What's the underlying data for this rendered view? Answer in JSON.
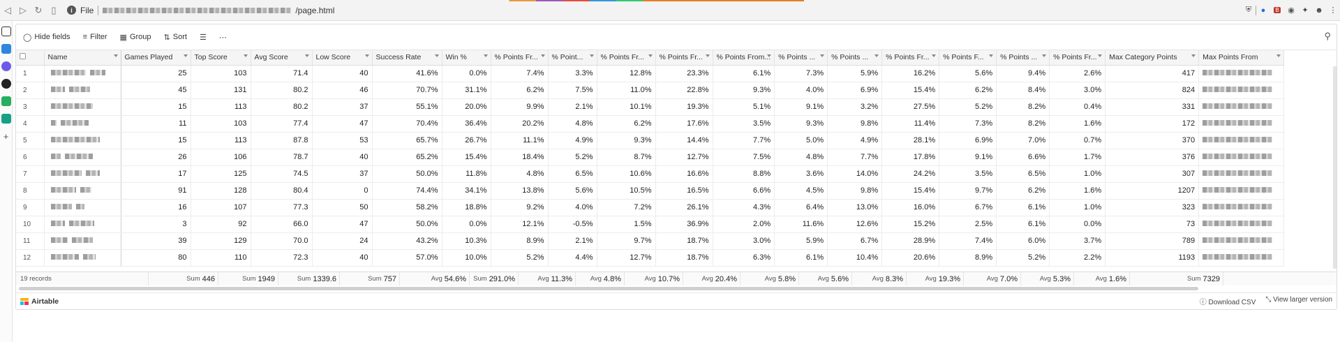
{
  "browser": {
    "address_prefix": "File",
    "address_path": "/page.html"
  },
  "toolbar": {
    "hide_fields": "Hide fields",
    "filter": "Filter",
    "group": "Group",
    "sort": "Sort"
  },
  "table": {
    "columns": [
      "Name",
      "Games Played",
      "Top Score",
      "Avg Score",
      "Low Score",
      "Success Rate",
      "Win %",
      "% Points Fr...",
      "% Point...",
      "% Points Fr...",
      "% Points Fr...",
      "% Points From...",
      "% Points ...",
      "% Points ...",
      "% Points Fr...",
      "% Points F...",
      "% Points ...",
      "% Points Fr...",
      "Max Category Points",
      "Max Points From"
    ],
    "rows": [
      [
        "1",
        "25",
        "103",
        "71.4",
        "40",
        "41.6%",
        "0.0%",
        "7.4%",
        "3.3%",
        "12.8%",
        "23.3%",
        "6.1%",
        "7.3%",
        "5.9%",
        "16.2%",
        "5.6%",
        "9.4%",
        "2.6%",
        "417"
      ],
      [
        "2",
        "45",
        "131",
        "80.2",
        "46",
        "70.7%",
        "31.1%",
        "6.2%",
        "7.5%",
        "11.0%",
        "22.8%",
        "9.3%",
        "4.0%",
        "6.9%",
        "15.4%",
        "6.2%",
        "8.4%",
        "3.0%",
        "824"
      ],
      [
        "3",
        "15",
        "113",
        "80.2",
        "37",
        "55.1%",
        "20.0%",
        "9.9%",
        "2.1%",
        "10.1%",
        "19.3%",
        "5.1%",
        "9.1%",
        "3.2%",
        "27.5%",
        "5.2%",
        "8.2%",
        "0.4%",
        "331"
      ],
      [
        "4",
        "11",
        "103",
        "77.4",
        "47",
        "70.4%",
        "36.4%",
        "20.2%",
        "4.8%",
        "6.2%",
        "17.6%",
        "3.5%",
        "9.3%",
        "9.8%",
        "11.4%",
        "7.3%",
        "8.2%",
        "1.6%",
        "172"
      ],
      [
        "5",
        "15",
        "113",
        "87.8",
        "53",
        "65.7%",
        "26.7%",
        "11.1%",
        "4.9%",
        "9.3%",
        "14.4%",
        "7.7%",
        "5.0%",
        "4.9%",
        "28.1%",
        "6.9%",
        "7.0%",
        "0.7%",
        "370"
      ],
      [
        "6",
        "26",
        "106",
        "78.7",
        "40",
        "65.2%",
        "15.4%",
        "18.4%",
        "5.2%",
        "8.7%",
        "12.7%",
        "7.5%",
        "4.8%",
        "7.7%",
        "17.8%",
        "9.1%",
        "6.6%",
        "1.7%",
        "376"
      ],
      [
        "7",
        "17",
        "125",
        "74.5",
        "37",
        "50.0%",
        "11.8%",
        "4.8%",
        "6.5%",
        "10.6%",
        "16.6%",
        "8.8%",
        "3.6%",
        "14.0%",
        "24.2%",
        "3.5%",
        "6.5%",
        "1.0%",
        "307"
      ],
      [
        "8",
        "91",
        "128",
        "80.4",
        "0",
        "74.4%",
        "34.1%",
        "13.8%",
        "5.6%",
        "10.5%",
        "16.5%",
        "6.6%",
        "4.5%",
        "9.8%",
        "15.4%",
        "9.7%",
        "6.2%",
        "1.6%",
        "1207"
      ],
      [
        "9",
        "16",
        "107",
        "77.3",
        "50",
        "58.2%",
        "18.8%",
        "9.2%",
        "4.0%",
        "7.2%",
        "26.1%",
        "4.3%",
        "6.4%",
        "13.0%",
        "16.0%",
        "6.7%",
        "6.1%",
        "1.0%",
        "323"
      ],
      [
        "10",
        "3",
        "92",
        "66.0",
        "47",
        "50.0%",
        "0.0%",
        "12.1%",
        "-0.5%",
        "1.5%",
        "36.9%",
        "2.0%",
        "11.6%",
        "12.6%",
        "15.2%",
        "2.5%",
        "6.1%",
        "0.0%",
        "73"
      ],
      [
        "11",
        "39",
        "129",
        "70.0",
        "24",
        "43.2%",
        "10.3%",
        "8.9%",
        "2.1%",
        "9.7%",
        "18.7%",
        "3.0%",
        "5.9%",
        "6.7%",
        "28.9%",
        "7.4%",
        "6.0%",
        "3.7%",
        "789"
      ],
      [
        "12",
        "80",
        "110",
        "72.3",
        "40",
        "57.0%",
        "10.0%",
        "5.2%",
        "4.4%",
        "12.7%",
        "18.7%",
        "6.3%",
        "6.1%",
        "10.4%",
        "20.6%",
        "8.9%",
        "5.2%",
        "2.2%",
        "1193"
      ]
    ]
  },
  "footer": {
    "record_count": "19 records",
    "summaries": [
      {
        "label": "Sum",
        "value": "446"
      },
      {
        "label": "Sum",
        "value": "1949"
      },
      {
        "label": "Sum",
        "value": "1339.6"
      },
      {
        "label": "Sum",
        "value": "757"
      },
      {
        "label": "Avg",
        "value": "54.6%"
      },
      {
        "label": "Sum",
        "value": "291.0%"
      },
      {
        "label": "Avg",
        "value": "11.3%"
      },
      {
        "label": "Avg",
        "value": "4.8%"
      },
      {
        "label": "Avg",
        "value": "10.7%"
      },
      {
        "label": "Avg",
        "value": "20.4%"
      },
      {
        "label": "Avg",
        "value": "5.8%"
      },
      {
        "label": "Avg",
        "value": "5.6%"
      },
      {
        "label": "Avg",
        "value": "8.3%"
      },
      {
        "label": "Avg",
        "value": "19.3%"
      },
      {
        "label": "Avg",
        "value": "7.0%"
      },
      {
        "label": "Avg",
        "value": "5.3%"
      },
      {
        "label": "Avg",
        "value": "1.6%"
      },
      {
        "label": "Sum",
        "value": "7329"
      }
    ]
  },
  "bottom": {
    "brand": "Airtable",
    "download": "Download CSV",
    "larger": "View larger version"
  },
  "colors": {
    "brand_yellow": "#fcb400",
    "brand_blue": "#18bfff",
    "brand_red": "#f82b60"
  }
}
